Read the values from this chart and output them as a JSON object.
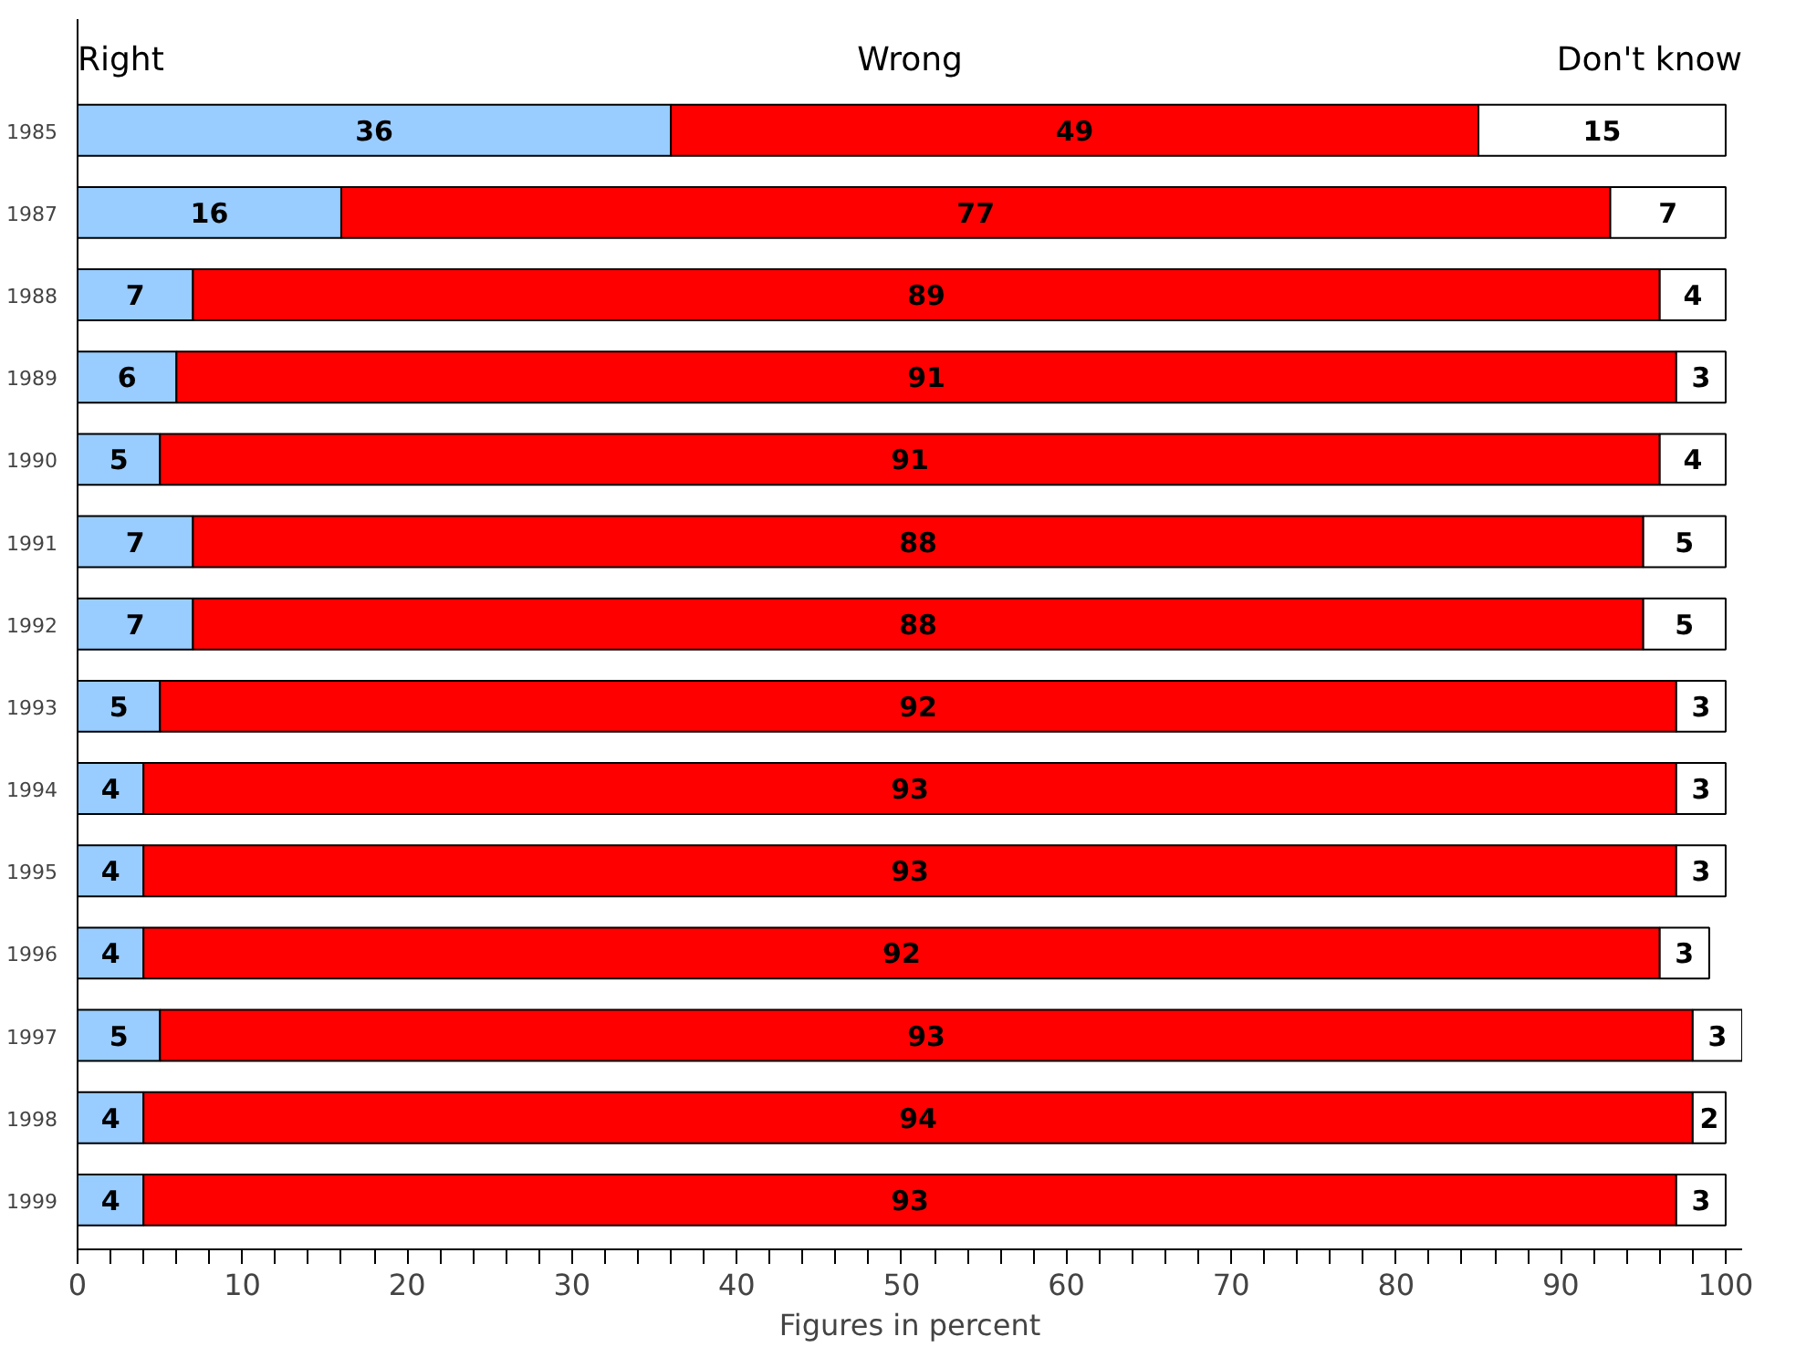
{
  "chart_data": {
    "type": "bar",
    "orientation": "horizontal",
    "stacked": true,
    "data_labels": true,
    "grid": false,
    "xlabel": "Figures in percent",
    "categories": [
      "1985",
      "1987",
      "1988",
      "1989",
      "1990",
      "1991",
      "1992",
      "1993",
      "1994",
      "1995",
      "1996",
      "1997",
      "1998",
      "1999"
    ],
    "series": [
      {
        "name": "Right",
        "color": "#99ccff",
        "values": [
          36,
          16,
          7,
          6,
          5,
          7,
          7,
          5,
          4,
          4,
          4,
          5,
          4,
          4
        ]
      },
      {
        "name": "Wrong",
        "color": "#ff0000",
        "values": [
          49,
          77,
          89,
          91,
          91,
          88,
          88,
          92,
          93,
          93,
          92,
          93,
          94,
          93
        ]
      },
      {
        "name": "Don't know",
        "color": "#ffffff",
        "values": [
          15,
          7,
          4,
          3,
          4,
          5,
          5,
          3,
          3,
          3,
          3,
          3,
          2,
          3
        ]
      }
    ],
    "xlim": [
      0,
      101
    ],
    "xticks": [
      0,
      {
        "value": 2,
        "label": null
      },
      {
        "value": 4,
        "label": null
      },
      {
        "value": 6,
        "label": null
      },
      {
        "value": 8,
        "label": null
      },
      10,
      {
        "value": 12,
        "label": null
      },
      {
        "value": 14,
        "label": null
      },
      {
        "value": 16,
        "label": null
      },
      {
        "value": 18,
        "label": null
      },
      20,
      {
        "value": 22,
        "label": null
      },
      {
        "value": 24,
        "label": null
      },
      {
        "value": 26,
        "label": null
      },
      {
        "value": 28,
        "label": null
      },
      30,
      {
        "value": 32,
        "label": null
      },
      {
        "value": 34,
        "label": null
      },
      {
        "value": 36,
        "label": null
      },
      {
        "value": 38,
        "label": null
      },
      40,
      {
        "value": 42,
        "label": null
      },
      {
        "value": 44,
        "label": null
      },
      {
        "value": 46,
        "label": null
      },
      {
        "value": 48,
        "label": null
      },
      50,
      {
        "value": 52,
        "label": null
      },
      {
        "value": 54,
        "label": null
      },
      {
        "value": 56,
        "label": null
      },
      {
        "value": 58,
        "label": null
      },
      60,
      {
        "value": 62,
        "label": null
      },
      {
        "value": 64,
        "label": null
      },
      {
        "value": 66,
        "label": null
      },
      {
        "value": 68,
        "label": null
      },
      70,
      {
        "value": 72,
        "label": null
      },
      {
        "value": 74,
        "label": null
      },
      {
        "value": 76,
        "label": null
      },
      {
        "value": 78,
        "label": null
      },
      80,
      {
        "value": 82,
        "label": null
      },
      {
        "value": 84,
        "label": null
      },
      {
        "value": 86,
        "label": null
      },
      {
        "value": 88,
        "label": null
      },
      90,
      {
        "value": 92,
        "label": null
      },
      {
        "value": 94,
        "label": null
      },
      {
        "value": 96,
        "label": null
      },
      {
        "value": 98,
        "label": null
      },
      100
    ]
  }
}
